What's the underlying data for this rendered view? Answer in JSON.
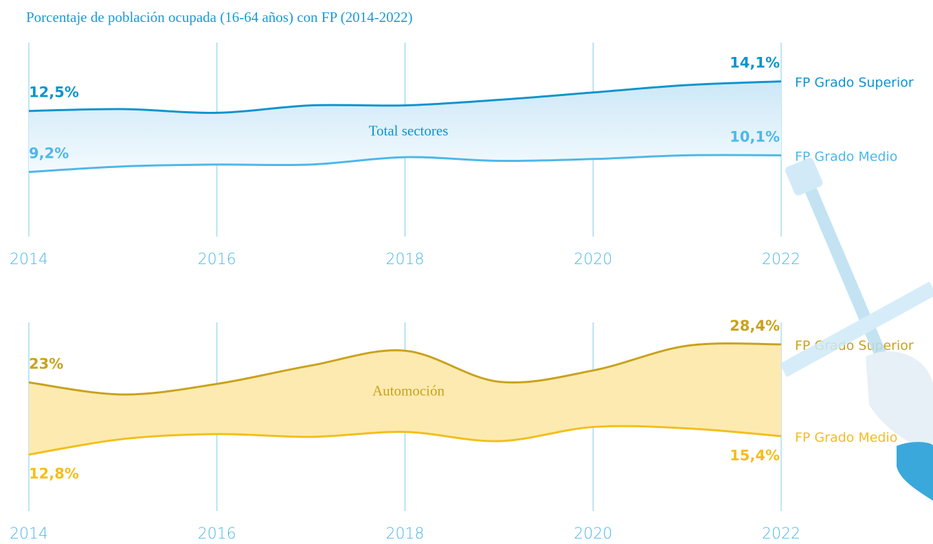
{
  "title": "Porcentaje de población ocupada (16-64 años) con FP (2014-2022)",
  "chart_data": [
    {
      "type": "line",
      "label": "Total sectores",
      "fill_color": "#dff0fa",
      "x": [
        2014,
        2015,
        2016,
        2017,
        2018,
        2019,
        2020,
        2021,
        2022
      ],
      "xlim": [
        2014,
        2022
      ],
      "xticks": [
        2014,
        2016,
        2018,
        2020,
        2022
      ],
      "ylim": [
        5.7,
        16.2
      ],
      "grid": true,
      "series": [
        {
          "name": "FP Grado Superior",
          "color": "#0e94cf",
          "values": [
            12.5,
            12.6,
            12.4,
            12.8,
            12.8,
            13.1,
            13.5,
            13.9,
            14.1
          ],
          "value_labels": [
            "12,5%",
            null,
            null,
            null,
            null,
            null,
            null,
            null,
            "14,1%"
          ]
        },
        {
          "name": "FP Grado Medio",
          "color": "#4db8e8",
          "values": [
            9.2,
            9.5,
            9.6,
            9.6,
            10.0,
            9.8,
            9.9,
            10.1,
            10.1
          ],
          "value_labels": [
            "9,2%",
            null,
            null,
            null,
            null,
            null,
            null,
            null,
            "10,1%"
          ]
        }
      ]
    },
    {
      "type": "line",
      "label": "Automoción",
      "fill_color": "#fdeab0",
      "x": [
        2014,
        2015,
        2016,
        2017,
        2018,
        2019,
        2020,
        2021,
        2022
      ],
      "xlim": [
        2014,
        2022
      ],
      "xticks": [
        2014,
        2016,
        2018,
        2020,
        2022
      ],
      "ylim": [
        4.8,
        31.5
      ],
      "grid": true,
      "series": [
        {
          "name": "FP Grado Superior",
          "color": "#c9a21c",
          "values": [
            23,
            21.3,
            22.8,
            25.4,
            27.5,
            23.1,
            24.7,
            28.2,
            28.4
          ],
          "value_labels": [
            "23%",
            null,
            null,
            null,
            null,
            null,
            null,
            null,
            "28,4%"
          ]
        },
        {
          "name": "FP Grado Medio",
          "color": "#f2bf1a",
          "values": [
            12.8,
            15.0,
            15.7,
            15.3,
            16.0,
            14.7,
            16.7,
            16.5,
            15.4
          ],
          "value_labels": [
            "12,8%",
            null,
            null,
            null,
            null,
            null,
            null,
            null,
            "15,4%"
          ]
        }
      ]
    }
  ]
}
